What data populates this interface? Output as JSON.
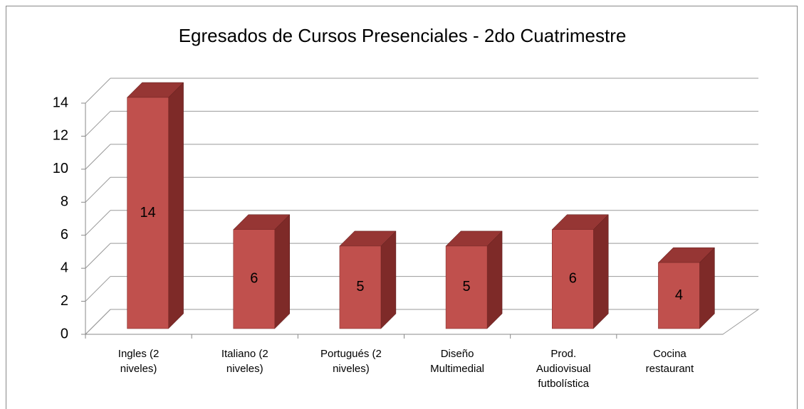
{
  "chart_data": {
    "type": "bar3d",
    "title": "Egresados de Cursos Presenciales - 2do Cuatrimestre",
    "categories": [
      "Ingles (2 niveles)",
      "Italiano (2 niveles)",
      "Portugués (2 niveles)",
      "Diseño Multimedial",
      "Prod. Audiovisual futbolística",
      "Cocina restaurant"
    ],
    "values": [
      14,
      6,
      5,
      5,
      6,
      4
    ],
    "color": "#c0504d",
    "ylim": [
      0,
      14
    ],
    "yticks": [
      0,
      2,
      4,
      6,
      8,
      10,
      12,
      14
    ],
    "grid": true
  }
}
